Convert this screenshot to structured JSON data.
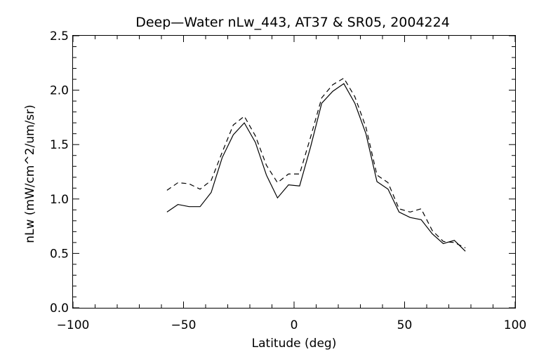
{
  "chart_data": {
    "type": "line",
    "title": "Deep—Water nLw_443, AT37 & SR05, 2004224",
    "xlabel": "Latitude (deg)",
    "ylabel": "nLw (mW/cm^2/um/sr)",
    "xlim": [
      -100,
      100
    ],
    "ylim": [
      0.0,
      2.5
    ],
    "x_ticks": [
      -100,
      -50,
      0,
      50,
      100
    ],
    "x_tick_labels": [
      "−100",
      "−50",
      "0",
      "50",
      "100"
    ],
    "y_ticks": [
      0.0,
      0.5,
      1.0,
      1.5,
      2.0,
      2.5
    ],
    "y_tick_labels": [
      "0.0",
      "0.5",
      "1.0",
      "1.5",
      "2.0",
      "2.5"
    ],
    "grid": false,
    "series": [
      {
        "style": "solid",
        "x": [
          -57.5,
          -52.5,
          -47.5,
          -42.5,
          -37.5,
          -32.5,
          -27.5,
          -22.5,
          -17.5,
          -12.5,
          -7.5,
          -2.5,
          2.5,
          7.5,
          12.5,
          17.5,
          22.5,
          27.5,
          32.5,
          37.5,
          42.5,
          47.5,
          52.5,
          57.5,
          62.5,
          67.5,
          72.5,
          77.5
        ],
        "y": [
          0.88,
          0.95,
          0.93,
          0.93,
          1.06,
          1.38,
          1.59,
          1.7,
          1.52,
          1.22,
          1.01,
          1.13,
          1.12,
          1.48,
          1.88,
          1.99,
          2.06,
          1.88,
          1.6,
          1.16,
          1.09,
          0.88,
          0.83,
          0.81,
          0.68,
          0.59,
          0.62,
          0.52
        ]
      },
      {
        "style": "dashed",
        "x": [
          -57.5,
          -52.5,
          -47.5,
          -42.5,
          -37.5,
          -32.5,
          -27.5,
          -22.5,
          -17.5,
          -12.5,
          -7.5,
          -2.5,
          2.5,
          7.5,
          12.5,
          17.5,
          22.5,
          27.5,
          32.5,
          37.5,
          42.5,
          47.5,
          52.5,
          57.5,
          62.5,
          67.5,
          72.5,
          77.5
        ],
        "y": [
          1.08,
          1.15,
          1.14,
          1.09,
          1.17,
          1.43,
          1.68,
          1.76,
          1.58,
          1.31,
          1.15,
          1.23,
          1.23,
          1.57,
          1.93,
          2.05,
          2.11,
          1.94,
          1.66,
          1.22,
          1.15,
          0.91,
          0.88,
          0.91,
          0.71,
          0.61,
          0.6,
          0.55
        ]
      }
    ]
  }
}
